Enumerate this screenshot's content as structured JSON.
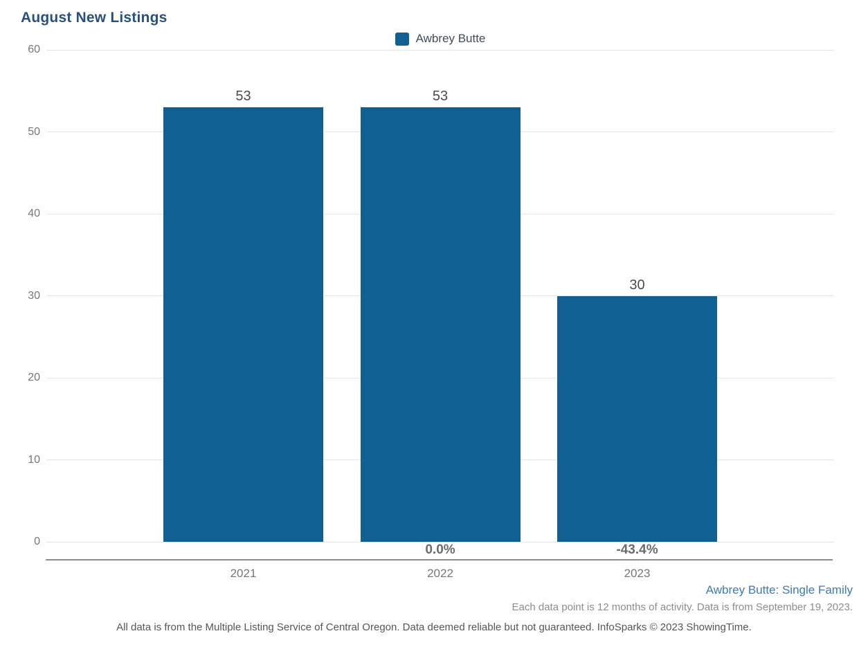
{
  "title": "August New Listings",
  "legend": {
    "label": "Awbrey Butte"
  },
  "chart_data": {
    "type": "bar",
    "title": "August New Listings",
    "categories": [
      "2021",
      "2022",
      "2023"
    ],
    "series": [
      {
        "name": "Awbrey Butte",
        "values": [
          53,
          53,
          30
        ]
      }
    ],
    "value_labels": [
      "53",
      "53",
      "30"
    ],
    "pct_change_labels": [
      "",
      "0.0%",
      "-43.4%"
    ],
    "ylim": [
      0,
      60
    ],
    "yticks": [
      60,
      50,
      40,
      30,
      20,
      10,
      0
    ],
    "grid": true,
    "legend_position": "top-center"
  },
  "footer": {
    "series_note": "Awbrey Butte: Single Family",
    "data_note": "Each data point is 12 months of activity. Data is from September 19, 2023.",
    "disclaimer": "All data is from the Multiple Listing Service of Central Oregon. Data deemed reliable but not guaranteed. InfoSparks © 2023 ShowingTime."
  },
  "colors": {
    "bar": "#106094",
    "title": "#27517c",
    "legend_text": "#3f4c5a",
    "axis_text": "#767676",
    "value_label": "#4a4a4a",
    "pct_label": "#6b6b6b",
    "gridline": "#e4e4e4",
    "axis_line": "#8c8c8c",
    "series_note": "#3d7ab5",
    "data_note": "#8c8c8c",
    "disclaimer": "#555555"
  }
}
